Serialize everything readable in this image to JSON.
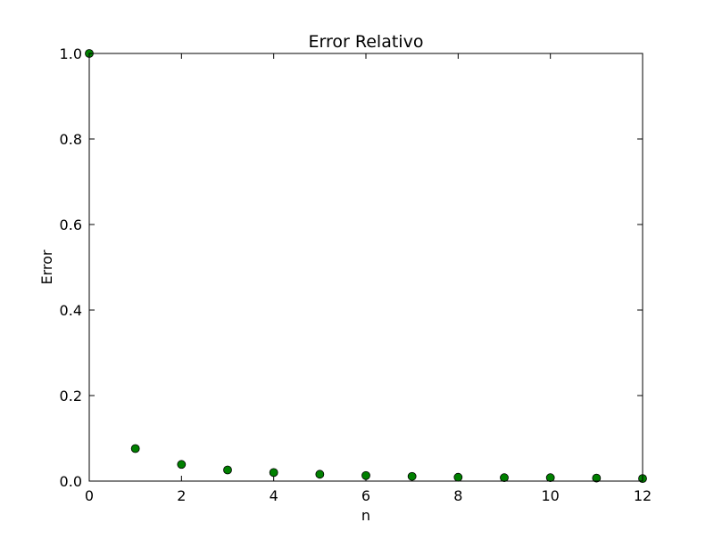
{
  "chart_data": {
    "type": "scatter",
    "title": "Error Relativo",
    "xlabel": "n",
    "ylabel": "Error",
    "xlim": [
      0,
      12
    ],
    "ylim": [
      0.0,
      1.0
    ],
    "xticks": [
      0,
      2,
      4,
      6,
      8,
      10,
      12
    ],
    "xtick_labels": [
      "0",
      "2",
      "4",
      "6",
      "8",
      "10",
      "12"
    ],
    "yticks": [
      0.0,
      0.2,
      0.4,
      0.6,
      0.8,
      1.0
    ],
    "ytick_labels": [
      "0.0",
      "0.2",
      "0.4",
      "0.6",
      "0.8",
      "1.0"
    ],
    "grid": false,
    "marker_color": "#008000",
    "series": [
      {
        "x": [
          0,
          1,
          2,
          3,
          4,
          5,
          6,
          7,
          8,
          9,
          10,
          11,
          12
        ],
        "y": [
          1.0,
          0.076,
          0.039,
          0.026,
          0.02,
          0.016,
          0.013,
          0.011,
          0.009,
          0.008,
          0.008,
          0.007,
          0.006
        ]
      }
    ]
  }
}
